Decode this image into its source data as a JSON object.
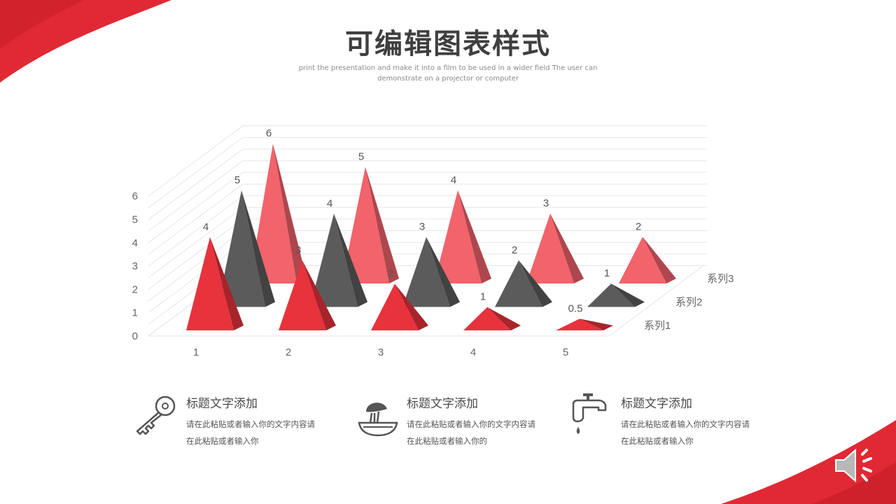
{
  "header": {
    "title": "可编辑图表样式",
    "subtitle": "print the presentation and make it into a film to be used in a wider field The user can demonstrate on a projector or computer"
  },
  "colors": {
    "accent_red": "#e02934",
    "series1": "#e8323c",
    "series2": "#5b5b5b",
    "series3": "#f2636b",
    "grid": "#e6e6e6"
  },
  "chart_data": {
    "type": "bar",
    "style": "3d-pyramid",
    "categories": [
      "1",
      "2",
      "3",
      "4",
      "5"
    ],
    "series": [
      {
        "name": "系列1",
        "values": [
          4,
          3,
          2,
          1,
          0.5
        ]
      },
      {
        "name": "系列2",
        "values": [
          5,
          4,
          3,
          2,
          1
        ]
      },
      {
        "name": "系列3",
        "values": [
          6,
          5,
          4,
          3,
          2
        ]
      }
    ],
    "y_ticks": [
      "0",
      "1",
      "2",
      "3",
      "4",
      "5",
      "6"
    ],
    "ylim": [
      0,
      6
    ],
    "grid": true,
    "legend": "series labels on depth axis, right"
  },
  "features": [
    {
      "icon": "key-icon",
      "title": "标题文字添加",
      "body": "请在此粘贴或者输入你的文字内容请在此粘贴或者输入你"
    },
    {
      "icon": "mushroom-bowl-icon",
      "title": "标题文字添加",
      "body": "请在此粘贴或者输入你的文字内容请在此粘贴或者输入你的"
    },
    {
      "icon": "faucet-icon",
      "title": "标题文字添加",
      "body": "请在此粘贴或者输入你的文字内容请在此粘贴或者输入你"
    }
  ],
  "controls": {
    "speaker_icon": "speaker-icon"
  }
}
